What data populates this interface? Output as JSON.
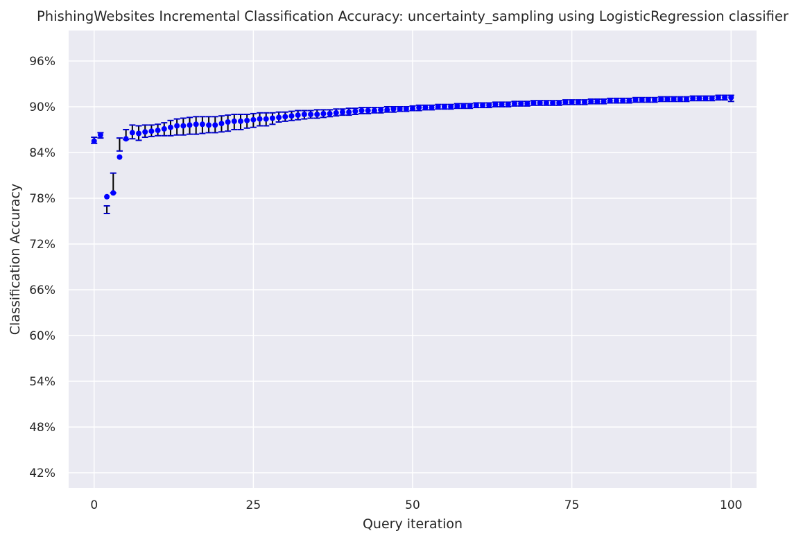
{
  "chart_data": {
    "type": "scatter",
    "title": "PhishingWebsites Incremental Classification Accuracy: uncertainty_sampling using LogisticRegression classifier",
    "xlabel": "Query iteration",
    "ylabel": "Classification Accuracy",
    "xlim": [
      -4,
      104
    ],
    "ylim": [
      0.4,
      1.0
    ],
    "x_ticks": [
      0,
      25,
      50,
      75,
      100
    ],
    "x_tick_labels": [
      "0",
      "25",
      "50",
      "75",
      "100"
    ],
    "y_ticks": [
      0.42,
      0.48,
      0.54,
      0.6,
      0.66,
      0.72,
      0.78,
      0.84,
      0.9,
      0.96
    ],
    "y_tick_labels": [
      "42%",
      "48%",
      "54%",
      "60%",
      "66%",
      "72%",
      "78%",
      "84%",
      "90%",
      "96%"
    ],
    "grid": true,
    "marker_color": "#0000ff",
    "errorbar_color": "#000000",
    "errorbar_cap_color": "#0000cd",
    "background_color": "#eaeaf2",
    "grid_color": "#ffffff",
    "series": [
      {
        "x": [
          0,
          1,
          2,
          3,
          4,
          5,
          6,
          7,
          8,
          9,
          10,
          11,
          12,
          13,
          14,
          15,
          16,
          17,
          18,
          19,
          20,
          21,
          22,
          23,
          24,
          25,
          26,
          27,
          28,
          29,
          30,
          31,
          32,
          33,
          34,
          35,
          36,
          37,
          38,
          39,
          40,
          41,
          42,
          43,
          44,
          45,
          46,
          47,
          48,
          49,
          50,
          51,
          52,
          53,
          54,
          55,
          56,
          57,
          58,
          59,
          60,
          61,
          62,
          63,
          64,
          65,
          66,
          67,
          68,
          69,
          70,
          71,
          72,
          73,
          74,
          75,
          76,
          77,
          78,
          79,
          80,
          81,
          82,
          83,
          84,
          85,
          86,
          87,
          88,
          89,
          90,
          91,
          92,
          93,
          94,
          95,
          96,
          97,
          98,
          99,
          100
        ],
        "y": [
          0.855,
          0.863,
          0.782,
          0.787,
          0.834,
          0.858,
          0.866,
          0.865,
          0.867,
          0.868,
          0.869,
          0.871,
          0.873,
          0.875,
          0.875,
          0.876,
          0.877,
          0.877,
          0.876,
          0.876,
          0.878,
          0.88,
          0.881,
          0.881,
          0.882,
          0.883,
          0.884,
          0.884,
          0.885,
          0.886,
          0.887,
          0.888,
          0.889,
          0.89,
          0.89,
          0.89,
          0.891,
          0.891,
          0.892,
          0.893,
          0.893,
          0.894,
          0.895,
          0.895,
          0.895,
          0.896,
          0.896,
          0.897,
          0.897,
          0.897,
          0.898,
          0.899,
          0.899,
          0.899,
          0.9,
          0.9,
          0.9,
          0.901,
          0.901,
          0.901,
          0.902,
          0.902,
          0.902,
          0.903,
          0.903,
          0.903,
          0.904,
          0.904,
          0.904,
          0.905,
          0.905,
          0.905,
          0.905,
          0.905,
          0.906,
          0.906,
          0.906,
          0.906,
          0.907,
          0.907,
          0.907,
          0.908,
          0.908,
          0.908,
          0.908,
          0.909,
          0.909,
          0.909,
          0.909,
          0.91,
          0.91,
          0.91,
          0.91,
          0.91,
          0.911,
          0.911,
          0.911,
          0.911,
          0.912,
          0.912,
          0.912
        ],
        "err_low": [
          0.852,
          0.859,
          0.76,
          0.787,
          0.842,
          0.857,
          0.858,
          0.856,
          0.86,
          0.861,
          0.862,
          0.862,
          0.862,
          0.863,
          0.863,
          0.864,
          0.864,
          0.865,
          0.866,
          0.866,
          0.867,
          0.868,
          0.87,
          0.87,
          0.872,
          0.873,
          0.875,
          0.875,
          0.877,
          0.88,
          0.881,
          0.882,
          0.883,
          0.884,
          0.885,
          0.885,
          0.886,
          0.887,
          0.888,
          0.889,
          0.889,
          0.89,
          0.891,
          0.891,
          0.892,
          0.892,
          0.893,
          0.893,
          0.894,
          0.894,
          0.895,
          0.895,
          0.896,
          0.896,
          0.897,
          0.897,
          0.897,
          0.898,
          0.898,
          0.898,
          0.899,
          0.899,
          0.899,
          0.9,
          0.9,
          0.9,
          0.901,
          0.901,
          0.901,
          0.902,
          0.902,
          0.902,
          0.902,
          0.902,
          0.903,
          0.903,
          0.903,
          0.903,
          0.904,
          0.904,
          0.904,
          0.905,
          0.905,
          0.905,
          0.905,
          0.906,
          0.906,
          0.906,
          0.906,
          0.907,
          0.907,
          0.907,
          0.907,
          0.907,
          0.908,
          0.908,
          0.908,
          0.908,
          0.909,
          0.909,
          0.907
        ],
        "err_high": [
          0.86,
          0.866,
          0.77,
          0.813,
          0.859,
          0.87,
          0.876,
          0.875,
          0.876,
          0.876,
          0.877,
          0.879,
          0.882,
          0.884,
          0.885,
          0.886,
          0.887,
          0.887,
          0.887,
          0.887,
          0.888,
          0.889,
          0.89,
          0.89,
          0.89,
          0.891,
          0.892,
          0.892,
          0.892,
          0.893,
          0.893,
          0.894,
          0.895,
          0.895,
          0.895,
          0.896,
          0.896,
          0.896,
          0.897,
          0.897,
          0.898,
          0.898,
          0.899,
          0.899,
          0.899,
          0.899,
          0.9,
          0.9,
          0.9,
          0.9,
          0.901,
          0.902,
          0.902,
          0.902,
          0.903,
          0.903,
          0.903,
          0.904,
          0.904,
          0.904,
          0.905,
          0.905,
          0.905,
          0.906,
          0.906,
          0.906,
          0.907,
          0.907,
          0.907,
          0.908,
          0.908,
          0.908,
          0.908,
          0.908,
          0.909,
          0.909,
          0.909,
          0.909,
          0.91,
          0.91,
          0.91,
          0.911,
          0.911,
          0.911,
          0.911,
          0.912,
          0.912,
          0.912,
          0.912,
          0.913,
          0.913,
          0.913,
          0.913,
          0.913,
          0.914,
          0.914,
          0.914,
          0.914,
          0.915,
          0.915,
          0.915
        ]
      }
    ]
  }
}
